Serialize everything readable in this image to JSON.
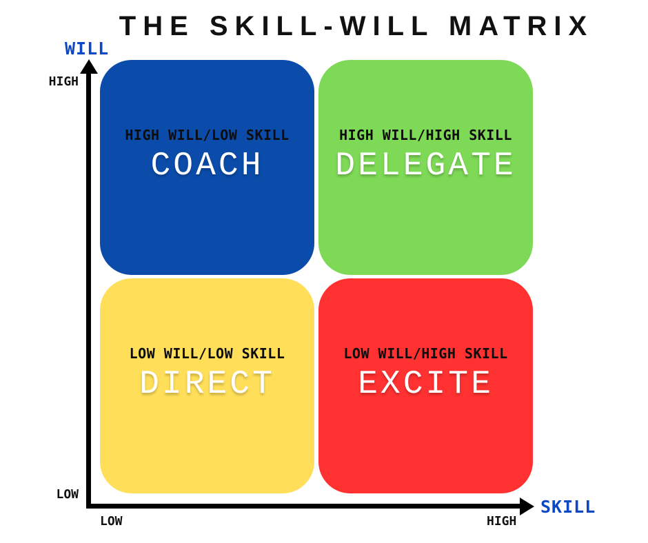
{
  "title": "THE SKILL-WILL MATRIX",
  "axes": {
    "y": {
      "name": "WILL",
      "top_label": "HIGH",
      "bottom_label": "LOW"
    },
    "x": {
      "name": "SKILL",
      "left_label": "LOW",
      "right_label": "HIGH"
    }
  },
  "quadrants": [
    {
      "position": "top-left",
      "subtitle": "HIGH WILL/LOW SKILL",
      "action": "COACH",
      "color": "#0B4CAB"
    },
    {
      "position": "top-right",
      "subtitle": "HIGH WILL/HIGH SKILL",
      "action": "DELEGATE",
      "color": "#7ED957"
    },
    {
      "position": "bottom-left",
      "subtitle": "LOW WILL/LOW SKILL",
      "action": "DIRECT",
      "color": "#FFDE59"
    },
    {
      "position": "bottom-right",
      "subtitle": "LOW WILL/HIGH SKILL",
      "action": "EXCITE",
      "color": "#FF3131"
    }
  ],
  "colors": {
    "background": "#FFFFFF",
    "title_text": "#111111",
    "axis_line": "#000000",
    "axis_name_blue": "#0C47C4",
    "tick_text": "#111111",
    "subtitle_text": "#0D0D0D",
    "action_text": "#FFFFFF",
    "quadrant_blue": "#0B4CAB",
    "quadrant_green": "#7ED957",
    "quadrant_yellow": "#FFDE59",
    "quadrant_red": "#FF3131"
  }
}
